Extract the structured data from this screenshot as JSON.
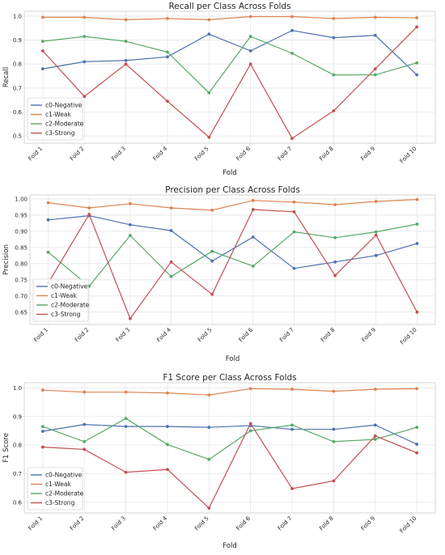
{
  "chart_data": [
    {
      "type": "line",
      "title": "Recall per Class Across Folds",
      "xlabel": "Fold",
      "ylabel": "Recall",
      "categories": [
        "Fold 1",
        "Fold 2",
        "Fold 3",
        "Fold 4",
        "Fold 5",
        "Fold 6",
        "Fold 7",
        "Fold 8",
        "Fold 9",
        "Fold 10"
      ],
      "ylim": [
        0.47,
        1.02
      ],
      "yticks": [
        0.5,
        0.6,
        0.7,
        0.8,
        0.9,
        1.0
      ],
      "ytick_labels": [
        "0.5",
        "0.6",
        "0.7",
        "0.8",
        "0.9",
        "1.0"
      ],
      "grid": true,
      "legend": "lower-left",
      "series": [
        {
          "name": "c0-Negative",
          "color": "#4c72b0",
          "values": [
            0.78,
            0.81,
            0.815,
            0.83,
            0.925,
            0.855,
            0.94,
            0.91,
            0.92,
            0.755
          ]
        },
        {
          "name": "c1-Weak",
          "color": "#dd8452",
          "values": [
            0.995,
            0.995,
            0.985,
            0.99,
            0.985,
            0.998,
            0.998,
            0.99,
            0.995,
            0.993
          ]
        },
        {
          "name": "c2-Moderate",
          "color": "#55a868",
          "values": [
            0.895,
            0.915,
            0.895,
            0.85,
            0.68,
            0.915,
            0.845,
            0.755,
            0.755,
            0.805
          ]
        },
        {
          "name": "c3-Strong",
          "color": "#c44e52",
          "values": [
            0.855,
            0.665,
            0.8,
            0.645,
            0.495,
            0.8,
            0.49,
            0.605,
            0.78,
            0.955
          ]
        }
      ]
    },
    {
      "type": "line",
      "title": "Precision per Class Across Folds",
      "xlabel": "Fold",
      "ylabel": "Precision",
      "categories": [
        "Fold 1",
        "Fold 2",
        "Fold 3",
        "Fold 4",
        "Fold 5",
        "Fold 6",
        "Fold 7",
        "Fold 8",
        "Fold 9",
        "Fold 10"
      ],
      "ylim": [
        0.612,
        1.012
      ],
      "yticks": [
        0.65,
        0.7,
        0.75,
        0.8,
        0.85,
        0.9,
        0.95,
        1.0
      ],
      "ytick_labels": [
        "0.65",
        "0.70",
        "0.75",
        "0.80",
        "0.85",
        "0.90",
        "0.95",
        "1.00"
      ],
      "grid": true,
      "legend": "lower-left",
      "series": [
        {
          "name": "c0-Negative",
          "color": "#4c72b0",
          "values": [
            0.935,
            0.948,
            0.92,
            0.902,
            0.808,
            0.882,
            0.785,
            0.805,
            0.825,
            0.862
          ]
        },
        {
          "name": "c1-Weak",
          "color": "#dd8452",
          "values": [
            0.988,
            0.972,
            0.985,
            0.972,
            0.965,
            0.995,
            0.99,
            0.982,
            0.992,
            0.998
          ]
        },
        {
          "name": "c2-Moderate",
          "color": "#55a868",
          "values": [
            0.835,
            0.73,
            0.887,
            0.76,
            0.838,
            0.792,
            0.898,
            0.88,
            0.898,
            0.922
          ]
        },
        {
          "name": "c3-Strong",
          "color": "#c44e52",
          "values": [
            0.74,
            0.952,
            0.63,
            0.805,
            0.705,
            0.967,
            0.96,
            0.763,
            0.888,
            0.65
          ]
        }
      ]
    },
    {
      "type": "line",
      "title": "F1 Score per Class Across Folds",
      "xlabel": "Fold",
      "ylabel": "F1 Score",
      "categories": [
        "Fold 1",
        "Fold 2",
        "Fold 3",
        "Fold 4",
        "Fold 5",
        "Fold 6",
        "Fold 7",
        "Fold 8",
        "Fold 9",
        "Fold 10"
      ],
      "ylim": [
        0.563,
        1.018
      ],
      "yticks": [
        0.6,
        0.7,
        0.8,
        0.9,
        1.0
      ],
      "ytick_labels": [
        "0.6",
        "0.7",
        "0.8",
        "0.9",
        "1.0"
      ],
      "grid": true,
      "legend": "lower-left",
      "series": [
        {
          "name": "c0-Negative",
          "color": "#4c72b0",
          "values": [
            0.848,
            0.872,
            0.865,
            0.865,
            0.862,
            0.868,
            0.855,
            0.855,
            0.87,
            0.803
          ]
        },
        {
          "name": "c1-Weak",
          "color": "#dd8452",
          "values": [
            0.992,
            0.985,
            0.985,
            0.982,
            0.975,
            0.997,
            0.995,
            0.988,
            0.995,
            0.997
          ]
        },
        {
          "name": "c2-Moderate",
          "color": "#55a868",
          "values": [
            0.865,
            0.812,
            0.893,
            0.802,
            0.75,
            0.85,
            0.87,
            0.812,
            0.82,
            0.862
          ]
        },
        {
          "name": "c3-Strong",
          "color": "#c44e52",
          "values": [
            0.793,
            0.785,
            0.705,
            0.715,
            0.58,
            0.875,
            0.648,
            0.675,
            0.832,
            0.773
          ]
        }
      ]
    }
  ]
}
